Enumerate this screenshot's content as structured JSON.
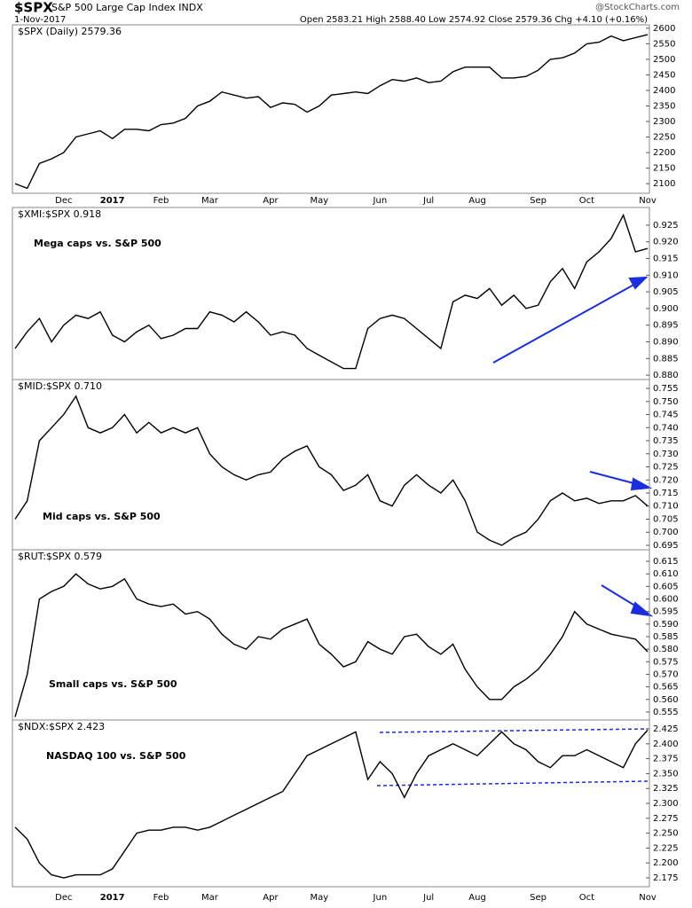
{
  "header": {
    "symbol": "$SPX",
    "name": "S&P 500 Large Cap Index INDX",
    "date": "1-Nov-2017",
    "quote": "Open 2583.21 High 2588.40 Low 2574.92 Close 2579.36 Chg +4.10 (+0.16%)",
    "source": "@StockCharts.com"
  },
  "chart_data": [
    {
      "type": "line",
      "title": "$SPX (Daily) 2579.36",
      "color": "#000000",
      "categories": [
        null,
        null,
        null,
        null,
        "Dec",
        null,
        null,
        null,
        "2017",
        null,
        null,
        null,
        "Feb",
        null,
        null,
        null,
        "Mar",
        null,
        null,
        null,
        null,
        "Apr",
        null,
        null,
        null,
        "May",
        null,
        null,
        null,
        null,
        "Jun",
        null,
        null,
        null,
        "Jul",
        null,
        null,
        null,
        "Aug",
        null,
        null,
        null,
        null,
        "Sep",
        null,
        null,
        null,
        "Oct",
        null,
        null,
        null,
        null,
        "Nov"
      ],
      "values": [
        2100,
        2085,
        2165,
        2180,
        2200,
        2250,
        2260,
        2270,
        2245,
        2275,
        2275,
        2270,
        2290,
        2295,
        2310,
        2350,
        2365,
        2395,
        2385,
        2375,
        2380,
        2345,
        2360,
        2355,
        2330,
        2350,
        2385,
        2390,
        2395,
        2390,
        2415,
        2435,
        2430,
        2440,
        2425,
        2430,
        2460,
        2475,
        2475,
        2475,
        2440,
        2440,
        2445,
        2465,
        2500,
        2505,
        2520,
        2550,
        2555,
        2575,
        2560,
        2570,
        2579.36
      ],
      "ylim": [
        2069,
        2611
      ],
      "yticks": [
        2100,
        2150,
        2200,
        2250,
        2300,
        2350,
        2400,
        2450,
        2500,
        2550,
        2600
      ]
    },
    {
      "type": "line",
      "title": "$XMI:$SPX 0.918",
      "annotation": "Mega caps vs. S&P 500",
      "color": "#000000",
      "values": [
        0.888,
        0.893,
        0.897,
        0.89,
        0.895,
        0.898,
        0.897,
        0.899,
        0.892,
        0.89,
        0.893,
        0.895,
        0.891,
        0.892,
        0.894,
        0.894,
        0.899,
        0.898,
        0.896,
        0.899,
        0.896,
        0.892,
        0.893,
        0.892,
        0.888,
        0.886,
        0.884,
        0.882,
        0.882,
        0.894,
        0.897,
        0.898,
        0.897,
        0.894,
        0.891,
        0.888,
        0.902,
        0.904,
        0.903,
        0.906,
        0.901,
        0.904,
        0.9,
        0.901,
        0.908,
        0.912,
        0.906,
        0.914,
        0.917,
        0.921,
        0.928,
        0.917,
        0.918
      ],
      "ylim": [
        0.8787,
        0.9303
      ],
      "yticks": [
        {
          "value": 0.88,
          "label": "0.880"
        },
        0.885,
        {
          "value": 0.89,
          "label": "0.890"
        },
        0.895,
        {
          "value": 0.9,
          "label": "0.900"
        },
        0.905,
        {
          "value": 0.91,
          "label": "0.910"
        },
        0.915,
        {
          "value": 0.92,
          "label": "0.920"
        },
        0.925
      ]
    },
    {
      "type": "line",
      "title": "$MID:$SPX 0.710",
      "annotation": "Mid caps vs. S&P 500",
      "color": "#000000",
      "values": [
        0.705,
        0.712,
        0.735,
        0.74,
        0.745,
        0.752,
        0.74,
        0.738,
        0.74,
        0.745,
        0.738,
        0.742,
        0.738,
        0.74,
        0.738,
        0.74,
        0.73,
        0.725,
        0.722,
        0.72,
        0.722,
        0.723,
        0.728,
        0.731,
        0.733,
        0.725,
        0.722,
        0.716,
        0.718,
        0.722,
        0.712,
        0.71,
        0.718,
        0.722,
        0.718,
        0.715,
        0.72,
        0.712,
        0.7,
        0.697,
        0.695,
        0.698,
        0.7,
        0.705,
        0.712,
        0.715,
        0.712,
        0.713,
        0.711,
        0.712,
        0.712,
        0.714,
        0.71
      ],
      "ylim": [
        0.6933,
        0.7584
      ],
      "yticks": [
        0.695,
        {
          "value": 0.7,
          "label": "0.700"
        },
        0.705,
        {
          "value": 0.71,
          "label": "0.710"
        },
        0.715,
        {
          "value": 0.72,
          "label": "0.720"
        },
        0.725,
        {
          "value": 0.73,
          "label": "0.730"
        },
        0.735,
        {
          "value": 0.74,
          "label": "0.740"
        },
        0.745,
        {
          "value": 0.75,
          "label": "0.750"
        },
        0.755
      ]
    },
    {
      "type": "line",
      "title": "$RUT:$SPX 0.579",
      "annotation": "Small caps vs. S&P 500",
      "color": "#000000",
      "values": [
        0.553,
        0.57,
        0.6,
        0.603,
        0.605,
        0.61,
        0.606,
        0.604,
        0.605,
        0.608,
        0.6,
        0.598,
        0.597,
        0.598,
        0.594,
        0.595,
        0.592,
        0.586,
        0.582,
        0.58,
        0.585,
        0.584,
        0.588,
        0.59,
        0.592,
        0.582,
        0.578,
        0.573,
        0.575,
        0.583,
        0.58,
        0.578,
        0.585,
        0.586,
        0.581,
        0.578,
        0.582,
        0.572,
        0.565,
        0.56,
        0.56,
        0.565,
        0.568,
        0.572,
        0.578,
        0.585,
        0.595,
        0.59,
        0.588,
        0.586,
        0.585,
        0.584,
        0.579
      ],
      "ylim": [
        0.5518,
        0.6196
      ],
      "yticks": [
        0.555,
        {
          "value": 0.56,
          "label": "0.560"
        },
        0.565,
        {
          "value": 0.57,
          "label": "0.570"
        },
        0.575,
        {
          "value": 0.58,
          "label": "0.580"
        },
        0.585,
        {
          "value": 0.59,
          "label": "0.590"
        },
        0.595,
        {
          "value": 0.6,
          "label": "0.600"
        },
        0.605,
        {
          "value": 0.61,
          "label": "0.610"
        },
        0.615
      ]
    },
    {
      "type": "line",
      "title": "$NDX:$SPX 2.423",
      "annotation": "NASDAQ 100 vs. S&P 500",
      "color": "#000000",
      "categories": [
        null,
        null,
        null,
        null,
        "Dec",
        null,
        null,
        null,
        "2017",
        null,
        null,
        null,
        "Feb",
        null,
        null,
        null,
        "Mar",
        null,
        null,
        null,
        null,
        "Apr",
        null,
        null,
        null,
        "May",
        null,
        null,
        null,
        null,
        "Jun",
        null,
        null,
        null,
        "Jul",
        null,
        null,
        null,
        "Aug",
        null,
        null,
        null,
        null,
        "Sep",
        null,
        null,
        null,
        "Oct",
        null,
        null,
        null,
        null,
        "Nov"
      ],
      "values": [
        2.26,
        2.24,
        2.2,
        2.18,
        2.175,
        2.18,
        2.18,
        2.18,
        2.19,
        2.22,
        2.25,
        2.255,
        2.255,
        2.26,
        2.26,
        2.255,
        2.26,
        2.27,
        2.28,
        2.29,
        2.3,
        2.31,
        2.32,
        2.35,
        2.38,
        2.39,
        2.4,
        2.41,
        2.42,
        2.34,
        2.37,
        2.35,
        2.31,
        2.35,
        2.38,
        2.39,
        2.4,
        2.39,
        2.38,
        2.4,
        2.42,
        2.4,
        2.39,
        2.37,
        2.36,
        2.38,
        2.38,
        2.39,
        2.38,
        2.37,
        2.36,
        2.4,
        2.423
      ],
      "ylim": [
        2.1601,
        2.4399
      ],
      "yticks": [
        2.175,
        {
          "value": 2.2,
          "label": "2.200"
        },
        2.225,
        {
          "value": 2.25,
          "label": "2.250"
        },
        2.275,
        {
          "value": 2.3,
          "label": "2.300"
        },
        2.325,
        {
          "value": 2.35,
          "label": "2.350"
        },
        2.375,
        {
          "value": 2.4,
          "label": "2.400"
        },
        2.425
      ]
    }
  ]
}
